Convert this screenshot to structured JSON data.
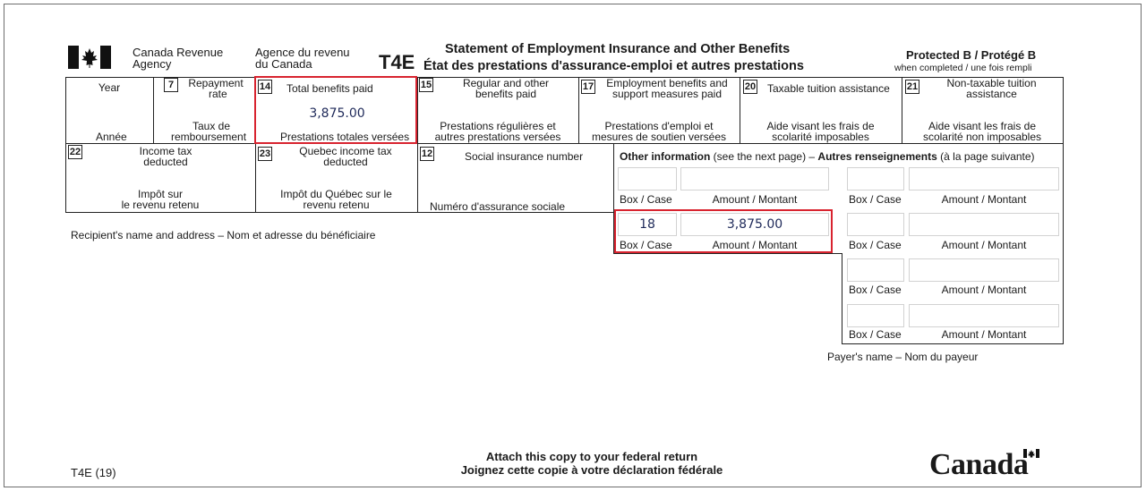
{
  "header": {
    "agency_en_1": "Canada Revenue",
    "agency_en_2": "Agency",
    "agency_fr_1": "Agence du revenu",
    "agency_fr_2": "du Canada",
    "form_code": "T4E",
    "title_en": "Statement of Employment Insurance and Other Benefits",
    "title_fr": "État des prestations d'assurance-emploi et autres prestations",
    "protected": "Protected B / Protégé B",
    "protected_note": "when completed / une fois rempli"
  },
  "row1": {
    "year_en": "Year",
    "year_fr": "Année",
    "box7_num": "7",
    "box7_en_1": "Repayment",
    "box7_en_2": "rate",
    "box7_fr_1": "Taux de",
    "box7_fr_2": "remboursement",
    "box14_num": "14",
    "box14_en": "Total benefits paid",
    "box14_value": "3,875.00",
    "box14_fr": "Prestations totales versées",
    "box15_num": "15",
    "box15_en_1": "Regular and other",
    "box15_en_2": "benefits paid",
    "box15_fr_1": "Prestations régulières et",
    "box15_fr_2": "autres prestations versées",
    "box17_num": "17",
    "box17_en_1": "Employment benefits and",
    "box17_en_2": "support measures paid",
    "box17_fr_1": "Prestations d'emploi et",
    "box17_fr_2": "mesures de soutien versées",
    "box20_num": "20",
    "box20_en": "Taxable tuition assistance",
    "box20_fr_1": "Aide visant les frais de",
    "box20_fr_2": "scolarité imposables",
    "box21_num": "21",
    "box21_en_1": "Non-taxable tuition",
    "box21_en_2": "assistance",
    "box21_fr_1": "Aide visant les frais de",
    "box21_fr_2": "scolarité non imposables"
  },
  "row2": {
    "box22_num": "22",
    "box22_en_1": "Income tax",
    "box22_en_2": "deducted",
    "box22_fr_1": "Impôt sur",
    "box22_fr_2": "le revenu retenu",
    "box23_num": "23",
    "box23_en_1": "Quebec income tax",
    "box23_en_2": "deducted",
    "box23_fr_1": "Impôt du Québec sur le",
    "box23_fr_2": "revenu retenu",
    "box12_num": "12",
    "box12_en": "Social insurance number",
    "box12_fr": "Numéro d'assurance sociale"
  },
  "other_info": {
    "heading_en_bold": "Other information",
    "heading_en_rest": " (see the next page) – ",
    "heading_fr_bold": "Autres renseignements",
    "heading_fr_rest": " (à la page suivante)",
    "box_label": "Box / Case",
    "amount_label": "Amount / Montant",
    "filled_box": "18",
    "filled_amount": "3,875.00"
  },
  "recipient_label": "Recipient's name and address – Nom et adresse du bénéficiaire",
  "payer_label": "Payer's name – Nom du payeur",
  "footer": {
    "form_version": "T4E (19)",
    "attach_en": "Attach this copy to your federal return",
    "attach_fr": "Joignez cette copie à votre déclaration fédérale",
    "wordmark": "Canada"
  },
  "colors": {
    "highlight": "#d8232f",
    "value_text": "#1f2a5a"
  }
}
